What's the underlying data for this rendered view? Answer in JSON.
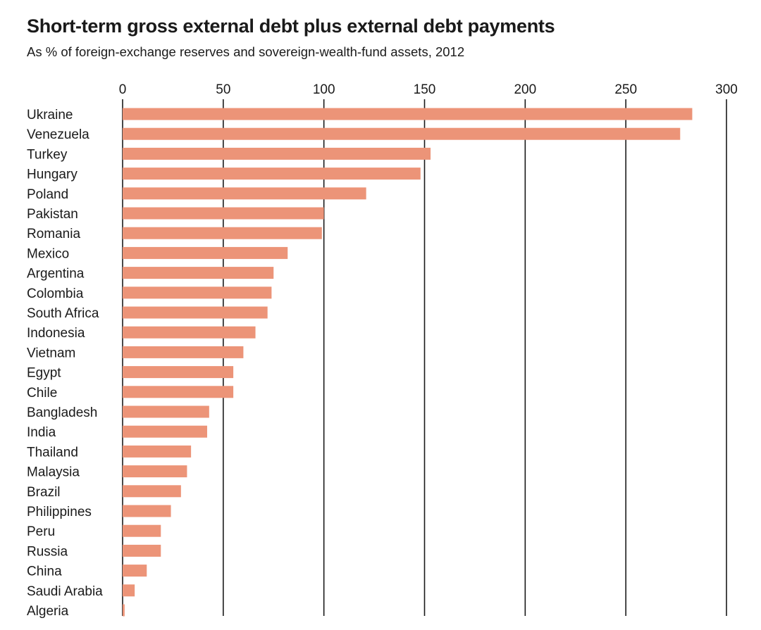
{
  "chart_data": {
    "type": "bar",
    "orientation": "horizontal",
    "title": "Short-term gross external debt plus external debt payments",
    "subtitle": "As % of foreign-exchange reserves and sovereign-wealth-fund assets, 2012",
    "categories": [
      "Ukraine",
      "Venezuela",
      "Turkey",
      "Hungary",
      "Poland",
      "Pakistan",
      "Romania",
      "Mexico",
      "Argentina",
      "Colombia",
      "South Africa",
      "Indonesia",
      "Vietnam",
      "Egypt",
      "Chile",
      "Bangladesh",
      "India",
      "Thailand",
      "Malaysia",
      "Brazil",
      "Philippines",
      "Peru",
      "Russia",
      "China",
      "Saudi Arabia",
      "Algeria"
    ],
    "values": [
      283,
      277,
      153,
      148,
      121,
      100,
      99,
      82,
      75,
      74,
      72,
      66,
      60,
      55,
      55,
      43,
      42,
      34,
      32,
      29,
      24,
      19,
      19,
      12,
      6,
      1
    ],
    "xlim": [
      0,
      300
    ],
    "xticks": [
      "0",
      "50",
      "100",
      "150",
      "200",
      "250",
      "300"
    ],
    "xaxis_position": "top",
    "grid": "vertical",
    "bar_color": "#ec9478",
    "grid_color": "#1a1a1a"
  }
}
